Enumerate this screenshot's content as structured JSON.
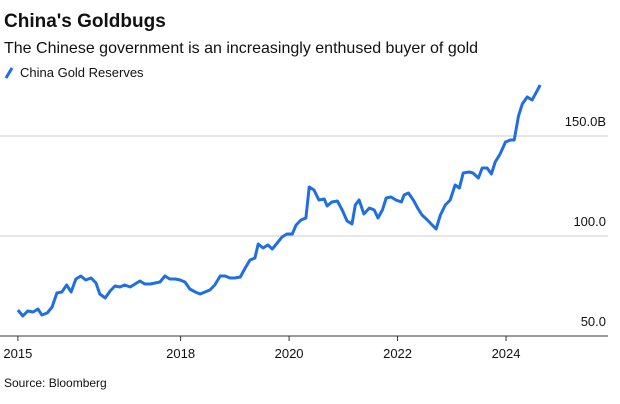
{
  "chart_data": {
    "type": "line",
    "title": "China's Goldbugs",
    "subtitle": "The Chinese government is an increasingly enthused buyer of gold",
    "source": "Source: Bloomberg",
    "series": [
      {
        "name": "China Gold Reserves",
        "color": "#1f6fe0",
        "x": [
          2015.0,
          2015.09,
          2015.18,
          2015.28,
          2015.37,
          2015.44,
          2015.54,
          2015.63,
          2015.72,
          2015.81,
          2015.9,
          2015.98,
          2016.07,
          2016.16,
          2016.25,
          2016.35,
          2016.44,
          2016.51,
          2016.61,
          2016.7,
          2016.79,
          2016.88,
          2016.97,
          2017.07,
          2017.16,
          2017.25,
          2017.34,
          2017.44,
          2017.53,
          2017.62,
          2017.71,
          2017.8,
          2017.9,
          2017.99,
          2018.08,
          2018.17,
          2018.27,
          2018.36,
          2018.45,
          2018.54,
          2018.63,
          2018.73,
          2018.82,
          2018.91,
          2019.0,
          2019.1,
          2019.19,
          2019.28,
          2019.37,
          2019.43,
          2019.52,
          2019.61,
          2019.69,
          2019.78,
          2019.87,
          2019.96,
          2020.06,
          2020.13,
          2020.22,
          2020.31,
          2020.37,
          2020.46,
          2020.55,
          2020.65,
          2020.7,
          2020.79,
          2020.89,
          2020.98,
          2021.07,
          2021.16,
          2021.22,
          2021.29,
          2021.38,
          2021.48,
          2021.57,
          2021.64,
          2021.72,
          2021.79,
          2021.88,
          2021.97,
          2022.07,
          2022.12,
          2022.2,
          2022.29,
          2022.38,
          2022.45,
          2022.55,
          2022.62,
          2022.71,
          2022.79,
          2022.88,
          2022.97,
          2023.06,
          2023.14,
          2023.21,
          2023.32,
          2023.39,
          2023.49,
          2023.56,
          2023.65,
          2023.73,
          2023.8,
          2023.89,
          2023.99,
          2024.08,
          2024.15,
          2024.23,
          2024.3,
          2024.39,
          2024.48,
          2024.55,
          2024.63
        ],
        "values": [
          63,
          60,
          62.5,
          62,
          63.5,
          60.5,
          61.5,
          64.5,
          71.5,
          72,
          75.5,
          72,
          78.5,
          80,
          78,
          79,
          76.5,
          71,
          69,
          72.5,
          75,
          74.5,
          75.5,
          74.5,
          76,
          77.5,
          76,
          76,
          76.5,
          77,
          80,
          78.5,
          78.5,
          78,
          77,
          73.5,
          72,
          71,
          72,
          73,
          75.5,
          80,
          80,
          79,
          79,
          79.5,
          84,
          88,
          89,
          96,
          94,
          95.5,
          93.5,
          96.5,
          99.5,
          101,
          101,
          105.5,
          108,
          109,
          124.5,
          123,
          118,
          118.5,
          115,
          117,
          117.5,
          113,
          107.5,
          106,
          115.5,
          118,
          111,
          114,
          113,
          109,
          113,
          119,
          119.5,
          118,
          117,
          120.5,
          121.5,
          118,
          113.5,
          110.5,
          108,
          106,
          103.5,
          110.5,
          115.5,
          118,
          125.5,
          124,
          131.5,
          132,
          131.5,
          129,
          134,
          134,
          131,
          137,
          141,
          147,
          148,
          148,
          160,
          166,
          169.5,
          168,
          171.5,
          175.5
        ]
      }
    ],
    "xlim": [
      2014.67,
      2025.88
    ],
    "xticks": [
      2015,
      2018,
      2020,
      2022,
      2024
    ],
    "ylim": [
      50,
      180
    ],
    "yticks": [
      {
        "value": 50,
        "label": "50.0"
      },
      {
        "value": 100,
        "label": "100.0"
      },
      {
        "value": 150,
        "label": "150.0B"
      }
    ],
    "grid": true
  }
}
